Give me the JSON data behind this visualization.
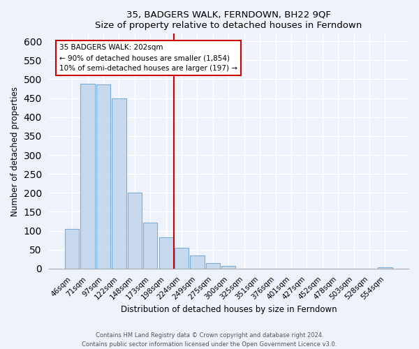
{
  "title": "35, BADGERS WALK, FERNDOWN, BH22 9QF",
  "subtitle": "Size of property relative to detached houses in Ferndown",
  "xlabel": "Distribution of detached houses by size in Ferndown",
  "ylabel": "Number of detached properties",
  "bar_labels": [
    "46sqm",
    "71sqm",
    "97sqm",
    "122sqm",
    "148sqm",
    "173sqm",
    "198sqm",
    "224sqm",
    "249sqm",
    "275sqm",
    "300sqm",
    "325sqm",
    "351sqm",
    "376sqm",
    "401sqm",
    "427sqm",
    "452sqm",
    "478sqm",
    "503sqm",
    "528sqm",
    "554sqm"
  ],
  "bar_values": [
    105,
    488,
    487,
    450,
    200,
    122,
    83,
    55,
    35,
    15,
    8,
    0,
    0,
    0,
    0,
    0,
    0,
    0,
    0,
    0,
    4
  ],
  "bar_color": "#c8d9ee",
  "bar_edge_color": "#7aaed6",
  "vline_color": "#cc0000",
  "annotation_title": "35 BADGERS WALK: 202sqm",
  "annotation_line1": "← 90% of detached houses are smaller (1,854)",
  "annotation_line2": "10% of semi-detached houses are larger (197) →",
  "annotation_box_color": "#ffffff",
  "annotation_box_edge": "#cc0000",
  "ylim": [
    0,
    620
  ],
  "yticks": [
    0,
    50,
    100,
    150,
    200,
    250,
    300,
    350,
    400,
    450,
    500,
    550,
    600
  ],
  "footer1": "Contains HM Land Registry data © Crown copyright and database right 2024.",
  "footer2": "Contains public sector information licensed under the Open Government Licence v3.0.",
  "bg_color": "#eef2fb",
  "plot_bg_color": "#eef2fb",
  "grid_color": "#ffffff"
}
